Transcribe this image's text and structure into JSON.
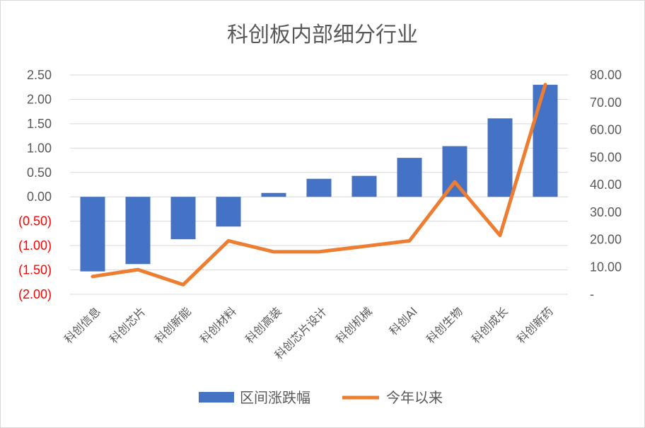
{
  "chart_data": {
    "type": "bar",
    "title": "科创板内部细分行业",
    "categories": [
      "科创信息",
      "科创芯片",
      "科创新能",
      "科创材料",
      "科创高装",
      "科创芯片设计",
      "科创机械",
      "科创AI",
      "科创生物",
      "科创成长",
      "科创新药"
    ],
    "series": [
      {
        "name": "区间涨跌幅",
        "type": "bar",
        "axis": "left",
        "color": "#4472c4",
        "values": [
          -1.53,
          -1.38,
          -0.87,
          -0.61,
          0.08,
          0.37,
          0.43,
          0.8,
          1.04,
          1.61,
          2.3
        ]
      },
      {
        "name": "今年以来",
        "type": "line",
        "axis": "right",
        "color": "#ed7d31",
        "values": [
          6.5,
          9.0,
          3.5,
          19.5,
          15.5,
          15.5,
          17.5,
          19.5,
          41.0,
          21.5,
          76.5
        ]
      }
    ],
    "y_left": {
      "ylim": [
        -2.0,
        2.5
      ],
      "ticks": [
        2.5,
        2.0,
        1.5,
        1.0,
        0.5,
        0.0,
        -0.5,
        -1.0,
        -1.5,
        -2.0
      ],
      "tick_labels": [
        "2.50",
        "2.00",
        "1.50",
        "1.00",
        "0.50",
        "0.00",
        "(0.50)",
        "(1.00)",
        "(1.50)",
        "(2.00)"
      ],
      "negative_color": "#ff0000"
    },
    "y_right": {
      "ylim": [
        0,
        80
      ],
      "ticks": [
        80,
        70,
        60,
        50,
        40,
        30,
        20,
        10,
        0
      ],
      "tick_labels": [
        "80.00",
        "70.00",
        "60.00",
        "50.00",
        "40.00",
        "30.00",
        "20.00",
        "10.00",
        "-"
      ]
    },
    "grid": true,
    "legend": "bottom"
  }
}
